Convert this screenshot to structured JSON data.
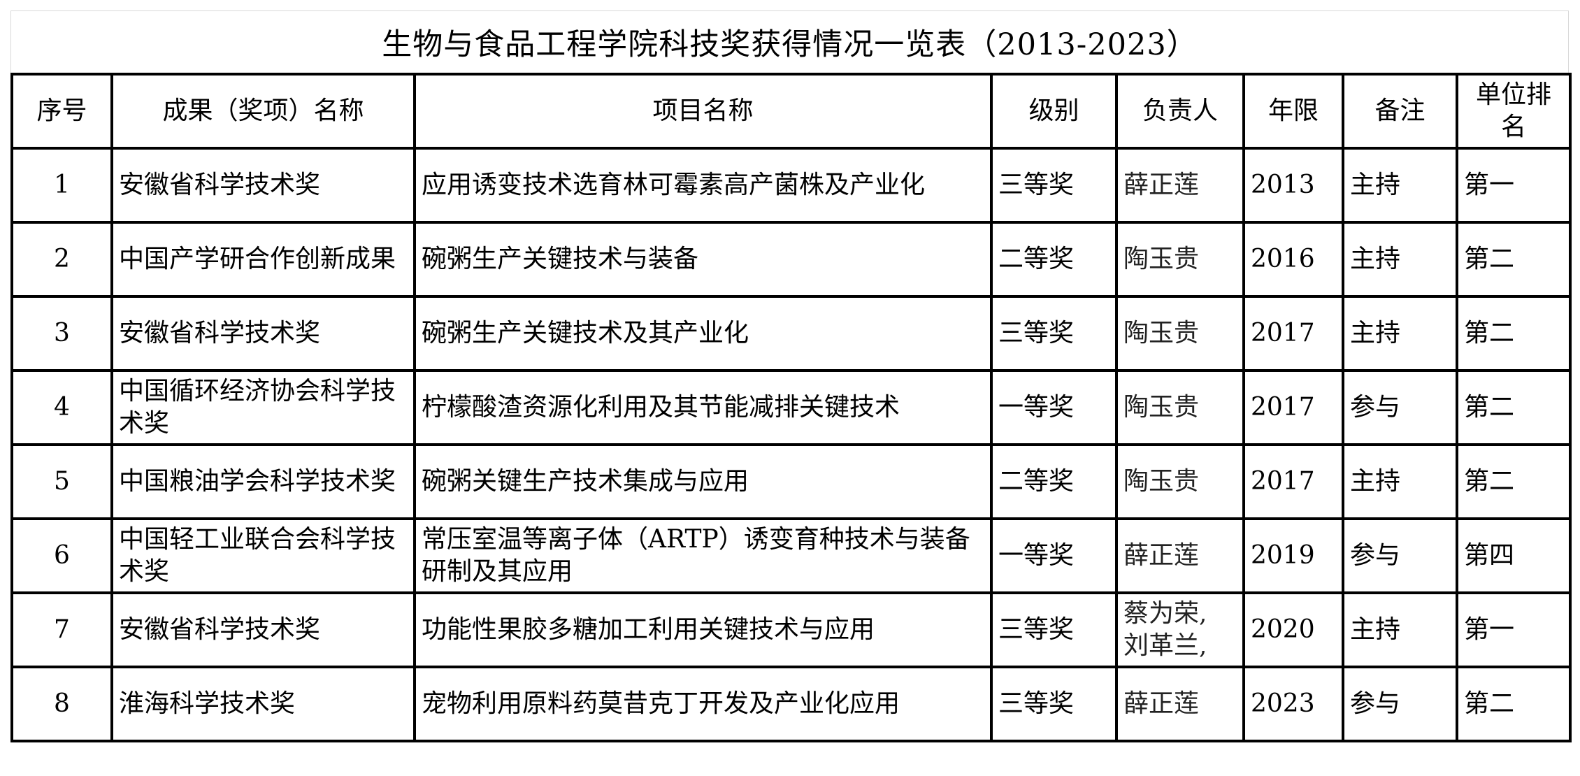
{
  "title": "生物与食品工程学院科技奖获得情况一览表（2013-2023）",
  "headers": [
    "序号",
    "成果（奖项）名称",
    "项目名称",
    "级别",
    "负责人",
    "年限",
    "备注",
    "单位排名"
  ],
  "rows": [
    {
      "no": "1",
      "award": "安徽省科学技术奖",
      "project": "应用诱变技术选育林可霉素高产菌株及产业化",
      "level": "三等奖",
      "person": "薛正莲",
      "year": "2013",
      "note": "主持",
      "rank": "第一"
    },
    {
      "no": "2",
      "award": "中国产学研合作创新成果",
      "project": "碗粥生产关键技术与装备",
      "level": "二等奖",
      "person": "陶玉贵",
      "year": "2016",
      "note": "主持",
      "rank": "第二"
    },
    {
      "no": "3",
      "award": "安徽省科学技术奖",
      "project": "碗粥生产关键技术及其产业化",
      "level": "三等奖",
      "person": "陶玉贵",
      "year": "2017",
      "note": "主持",
      "rank": "第二"
    },
    {
      "no": "4",
      "award": "中国循环经济协会科学技术奖",
      "project": "柠檬酸渣资源化利用及其节能减排关键技术",
      "level": "一等奖",
      "person": "陶玉贵",
      "year": "2017",
      "note": "参与",
      "rank": "第二"
    },
    {
      "no": "5",
      "award": "中国粮油学会科学技术奖",
      "project": "碗粥关键生产技术集成与应用",
      "level": "二等奖",
      "person": "陶玉贵",
      "year": "2017",
      "note": "主持",
      "rank": "第二"
    },
    {
      "no": "6",
      "award": "中国轻工业联合会科学技术奖",
      "project": "常压室温等离子体（ARTP）诱变育种技术与装备研制及其应用",
      "level": "一等奖",
      "person": "薛正莲",
      "year": "2019",
      "note": "参与",
      "rank": "第四"
    },
    {
      "no": "7",
      "award": "安徽省科学技术奖",
      "project": "功能性果胶多糖加工利用关键技术与应用",
      "level": "三等奖",
      "person": "蔡为荣, 刘革兰,",
      "year": "2020",
      "note": "主持",
      "rank": "第一"
    },
    {
      "no": "8",
      "award": "淮海科学技术奖",
      "project": "宠物利用原料药莫昔克丁开发及产业化应用",
      "level": "三等奖",
      "person": "薛正莲",
      "year": "2023",
      "note": "参与",
      "rank": "第二"
    }
  ]
}
